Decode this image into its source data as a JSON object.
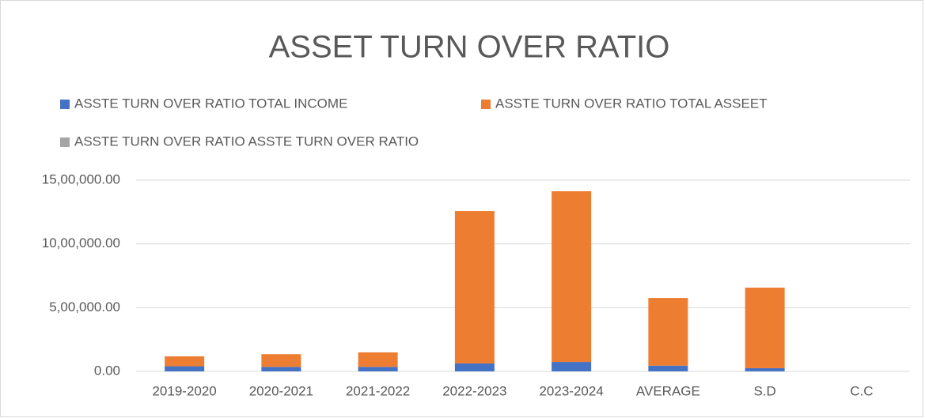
{
  "chart_data": {
    "type": "stacked_bar",
    "title": "ASSET TURN OVER RATIO",
    "categories": [
      "2019-2020",
      "2020-2021",
      "2021-2022",
      "2022-2023",
      "2023-2024",
      "AVERAGE",
      "S.D",
      "C.C"
    ],
    "series": [
      {
        "name": "ASSTE TURN OVER RATIO TOTAL INCOME",
        "color": "#4472c4",
        "values": [
          40000,
          35000,
          35000,
          62000,
          74000,
          45000,
          25000,
          null
        ]
      },
      {
        "name": "ASSTE TURN OVER RATIO TOTAL ASSEET",
        "color": "#ed7d31",
        "values": [
          78000,
          100000,
          114000,
          1196000,
          1339000,
          531000,
          632000,
          null
        ]
      },
      {
        "name": "ASSTE TURN OVER RATIO ASSTE TURN OVER RATIO",
        "color": "#a5a5a5",
        "values": [
          0.53,
          0.35,
          0.31,
          0.05,
          0.06,
          0.26,
          0.2,
          null
        ]
      }
    ],
    "ylim": [
      0,
      1500000
    ],
    "yticks": [
      {
        "value": 0,
        "label": "0.00"
      },
      {
        "value": 500000,
        "label": "5,00,000.00"
      },
      {
        "value": 1000000,
        "label": "10,00,000.00"
      },
      {
        "value": 1500000,
        "label": "15,00,000.00"
      }
    ],
    "grid": true,
    "legend": "top"
  }
}
